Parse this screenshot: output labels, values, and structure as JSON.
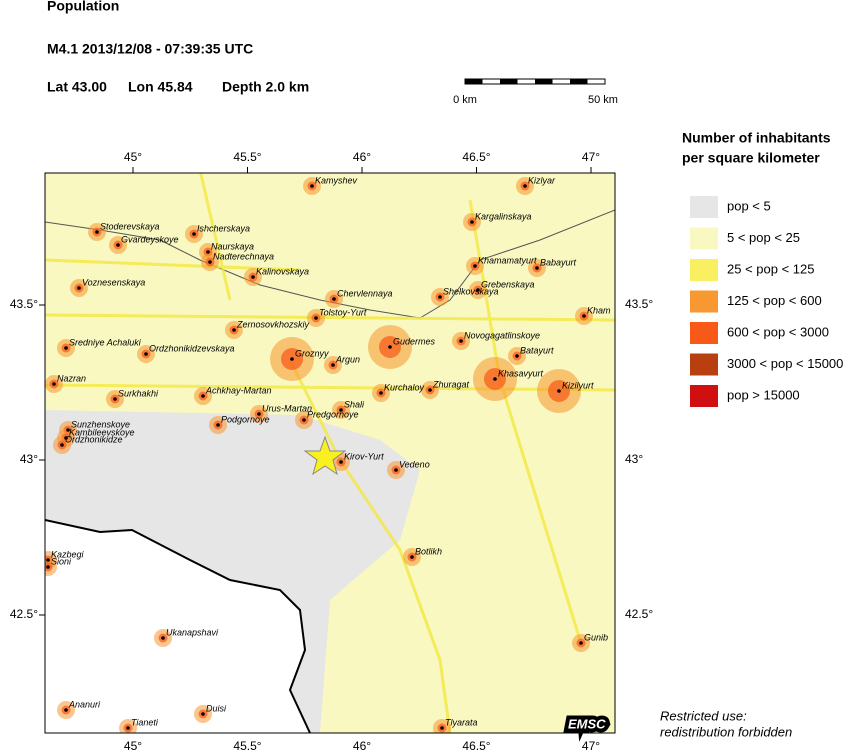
{
  "header": {
    "title": "Population",
    "event": "M4.1  2013/12/08 - 07:39:35 UTC",
    "lat": "Lat 43.00",
    "lon": "Lon  45.84",
    "depth": "Depth  2.0 km"
  },
  "scale": {
    "start": "0 km",
    "end": "50 km"
  },
  "legend": {
    "title": [
      "Number of inhabitants",
      "per square kilometer"
    ],
    "items": [
      {
        "label": "pop < 5",
        "color": "#e6e6e6"
      },
      {
        "label": "5 < pop < 25",
        "color": "#f8f8c0"
      },
      {
        "label": "25 < pop < 125",
        "color": "#f8f060"
      },
      {
        "label": "125 < pop < 600",
        "color": "#f89830"
      },
      {
        "label": "600 < pop < 3000",
        "color": "#f85818"
      },
      {
        "label": "3000 < pop < 15000",
        "color": "#b84010"
      },
      {
        "label": "pop > 15000",
        "color": "#d01010"
      }
    ]
  },
  "map": {
    "lon_ticks": [
      {
        "value": 45,
        "label": "45°"
      },
      {
        "value": 45.5,
        "label": "45.5°"
      },
      {
        "value": 46,
        "label": "46°"
      },
      {
        "value": 46.5,
        "label": "46.5°"
      },
      {
        "value": 47,
        "label": "47°"
      }
    ],
    "lat_ticks": [
      {
        "value": 43.5,
        "label": "43.5°"
      },
      {
        "value": 43,
        "label": "43°"
      },
      {
        "value": 42.5,
        "label": "42.5°"
      }
    ],
    "towns": [
      "Kamyshev",
      "Kizlyar",
      "Stoderevskaya",
      "Ishcherskaya",
      "Kargalinskaya",
      "Gvardeyskoye",
      "Naurskaya",
      "Nadterechnaya",
      "Khamamatyurt",
      "Babayurt",
      "Kalinovskaya",
      "Grebenskaya",
      "Voznesenskaya",
      "Chervlennaya",
      "Shelkovskaya",
      "Kham",
      "Tolstoy-Yurt",
      "Zernosovkhozskiy",
      "Novogagatlinskoye",
      "Sredniye Achaluki",
      "Gudermes",
      "Ordzhonikidzevskaya",
      "Groznyy",
      "Batayurt",
      "Argun",
      "Khasavyurt",
      "Kizilyurt",
      "Nazran",
      "Kurchaloy",
      "Zhuragat",
      "Surkhakhi",
      "Achkhay-Martan",
      "Urus-Martan",
      "Shali",
      "Predgornoye",
      "Podgornoye",
      "Sunzhenskoye",
      "Kambileevskoye",
      "Ordzhonikidze",
      "Kirov-Yurt",
      "Vedeno",
      "Botlikh",
      "Kazbegi",
      "Sioni",
      "Gunib",
      "Ukanapshavi",
      "Ananuri",
      "Duisi",
      "Tianeti",
      "Tlyarata"
    ],
    "credit": "EMSC"
  },
  "note": [
    "Restricted use:",
    "redistribution forbidden"
  ]
}
